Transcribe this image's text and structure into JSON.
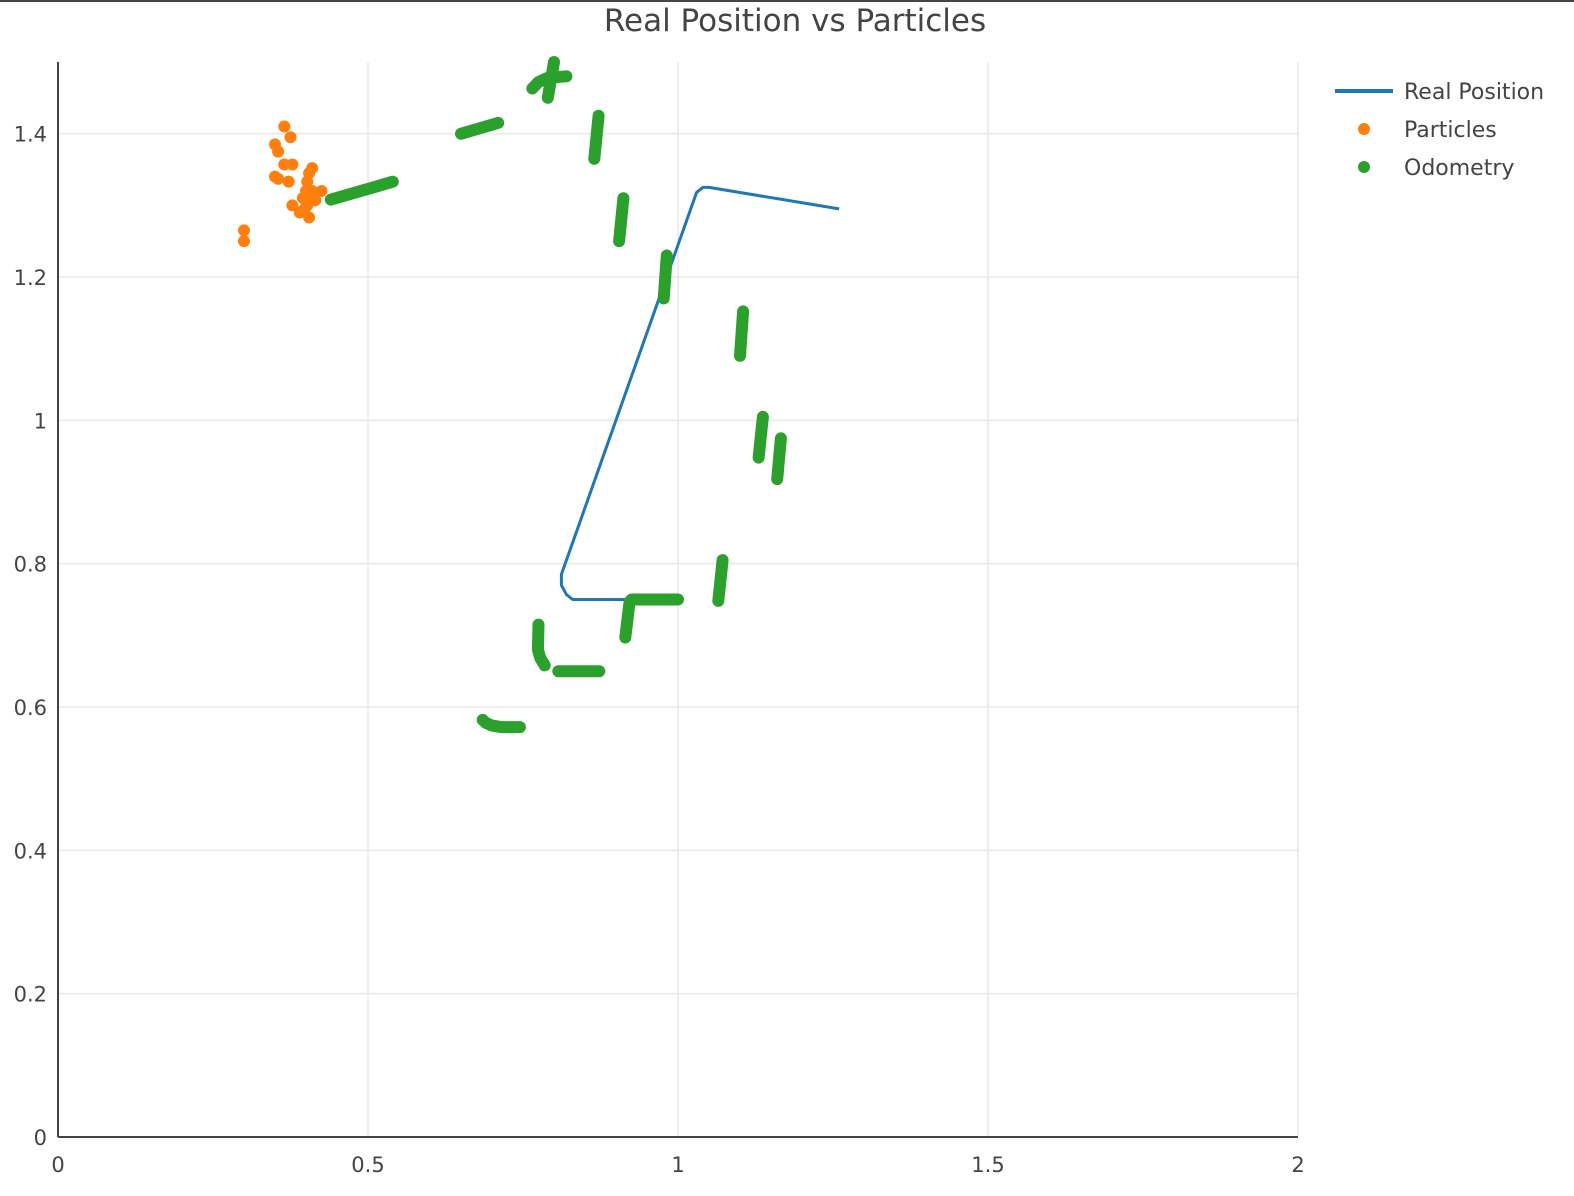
{
  "chart_data": {
    "type": "scatter",
    "title": "Real Position vs Particles",
    "xlabel": "",
    "ylabel": "",
    "xlim": [
      0,
      2
    ],
    "ylim": [
      0,
      1.5
    ],
    "x_ticks": [
      0,
      0.5,
      1,
      1.5,
      2
    ],
    "x_tick_labels": [
      "0",
      "0.5",
      "1",
      "1.5",
      "2"
    ],
    "y_ticks": [
      0,
      0.2,
      0.4,
      0.6,
      0.8,
      1,
      1.2,
      1.4
    ],
    "y_tick_labels": [
      "0",
      "0.2",
      "0.4",
      "0.6",
      "0.8",
      "1",
      "1.2",
      "1.4"
    ],
    "grid": true,
    "legend_position": "top-right",
    "series": [
      {
        "name": "Real Position",
        "mode": "line",
        "color": "#1f77b4",
        "points": [
          [
            1.26,
            1.295
          ],
          [
            1.05,
            1.325
          ],
          [
            1.04,
            1.325
          ],
          [
            1.03,
            1.318
          ],
          [
            0.812,
            0.785
          ],
          [
            0.812,
            0.77
          ],
          [
            0.82,
            0.757
          ],
          [
            0.83,
            0.75
          ],
          [
            0.93,
            0.75
          ]
        ]
      },
      {
        "name": "Particles",
        "mode": "markers",
        "color": "#ff7f0e",
        "points": [
          [
            0.3,
            1.265
          ],
          [
            0.3,
            1.25
          ],
          [
            0.35,
            1.385
          ],
          [
            0.355,
            1.375
          ],
          [
            0.35,
            1.34
          ],
          [
            0.355,
            1.337
          ],
          [
            0.365,
            1.41
          ],
          [
            0.375,
            1.395
          ],
          [
            0.365,
            1.357
          ],
          [
            0.378,
            1.357
          ],
          [
            0.372,
            1.333
          ],
          [
            0.378,
            1.3
          ],
          [
            0.39,
            1.29
          ],
          [
            0.4,
            1.32
          ],
          [
            0.402,
            1.333
          ],
          [
            0.405,
            1.345
          ],
          [
            0.41,
            1.352
          ],
          [
            0.41,
            1.32
          ],
          [
            0.41,
            1.307
          ],
          [
            0.415,
            1.307
          ],
          [
            0.425,
            1.32
          ],
          [
            0.402,
            1.3
          ],
          [
            0.405,
            1.283
          ],
          [
            0.395,
            1.31
          ],
          [
            0.398,
            1.295
          ]
        ]
      },
      {
        "name": "Odometry",
        "mode": "markers",
        "color": "#2ca02c",
        "segments": [
          [
            [
              0.44,
              1.308
            ],
            [
              0.54,
              1.333
            ]
          ],
          [
            [
              0.65,
              1.4
            ],
            [
              0.71,
              1.415
            ]
          ],
          [
            [
              0.765,
              1.463
            ],
            [
              0.775,
              1.472
            ],
            [
              0.79,
              1.478
            ],
            [
              0.82,
              1.48
            ]
          ],
          [
            [
              0.79,
              1.45
            ],
            [
              0.8,
              1.5
            ]
          ],
          [
            [
              0.865,
              1.365
            ],
            [
              0.872,
              1.425
            ]
          ],
          [
            [
              0.905,
              1.25
            ],
            [
              0.912,
              1.31
            ]
          ],
          [
            [
              0.977,
              1.17
            ],
            [
              0.982,
              1.23
            ]
          ],
          [
            [
              1.1,
              1.09
            ],
            [
              1.105,
              1.152
            ]
          ],
          [
            [
              1.13,
              0.948
            ],
            [
              1.137,
              1.005
            ]
          ],
          [
            [
              1.16,
              0.918
            ],
            [
              1.166,
              0.975
            ]
          ],
          [
            [
              1.065,
              0.748
            ],
            [
              1.072,
              0.805
            ]
          ],
          [
            [
              0.915,
              0.697
            ],
            [
              0.922,
              0.747
            ]
          ],
          [
            [
              0.925,
              0.75
            ],
            [
              1.0,
              0.75
            ]
          ],
          [
            [
              0.775,
              0.715
            ],
            [
              0.774,
              0.68
            ],
            [
              0.778,
              0.668
            ],
            [
              0.785,
              0.658
            ]
          ],
          [
            [
              0.807,
              0.65
            ],
            [
              0.873,
              0.65
            ]
          ],
          [
            [
              0.685,
              0.582
            ],
            [
              0.69,
              0.578
            ],
            [
              0.7,
              0.574
            ],
            [
              0.715,
              0.572
            ],
            [
              0.745,
              0.572
            ]
          ]
        ]
      }
    ]
  }
}
